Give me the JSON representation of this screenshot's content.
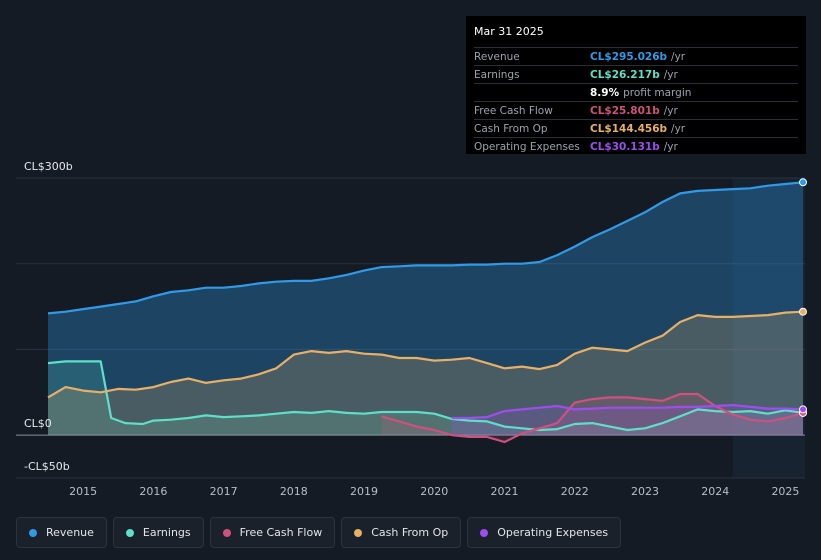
{
  "tooltip": {
    "date": "Mar 31 2025",
    "rows": [
      {
        "label": "Revenue",
        "value": "CL$295.026b",
        "suffix": "/yr",
        "color": "#2f9be8"
      },
      {
        "label": "Earnings",
        "value": "CL$26.217b",
        "suffix": "/yr",
        "color": "#5ee0c8"
      },
      {
        "label": "",
        "value": "8.9%",
        "suffix": "profit margin",
        "color": "#ffffff"
      },
      {
        "label": "Free Cash Flow",
        "value": "CL$25.801b",
        "suffix": "/yr",
        "color": "#d0507e"
      },
      {
        "label": "Cash From Op",
        "value": "CL$144.456b",
        "suffix": "/yr",
        "color": "#e8b066"
      },
      {
        "label": "Operating Expenses",
        "value": "CL$30.131b",
        "suffix": "/yr",
        "color": "#9e4ef0"
      }
    ]
  },
  "axis": {
    "top_label": "CL$300b",
    "zero_label": "CL$0",
    "bottom_label": "-CL$50b"
  },
  "legend": [
    {
      "label": "Revenue",
      "color": "#2f9be8"
    },
    {
      "label": "Earnings",
      "color": "#5ee0c8"
    },
    {
      "label": "Free Cash Flow",
      "color": "#d0507e"
    },
    {
      "label": "Cash From Op",
      "color": "#e8b066"
    },
    {
      "label": "Operating Expenses",
      "color": "#9e4ef0"
    }
  ],
  "chart_data": {
    "type": "area",
    "title": "",
    "xlabel": "",
    "ylabel": "",
    "ylim": [
      -50,
      300
    ],
    "xlim": [
      2014.5,
      2025.25
    ],
    "x_ticks": [
      "2015",
      "2016",
      "2017",
      "2018",
      "2019",
      "2020",
      "2021",
      "2022",
      "2023",
      "2024",
      "2025"
    ],
    "series": [
      {
        "name": "Revenue",
        "color": "#2f9be8",
        "x": [
          2014.5,
          2014.75,
          2015.0,
          2015.25,
          2015.5,
          2015.75,
          2016.0,
          2016.25,
          2016.5,
          2016.75,
          2017.0,
          2017.25,
          2017.5,
          2017.75,
          2018.0,
          2018.25,
          2018.5,
          2018.75,
          2019.0,
          2019.25,
          2019.5,
          2019.75,
          2020.0,
          2020.25,
          2020.5,
          2020.75,
          2021.0,
          2021.25,
          2021.5,
          2021.75,
          2022.0,
          2022.25,
          2022.5,
          2022.75,
          2023.0,
          2023.25,
          2023.5,
          2023.75,
          2024.0,
          2024.25,
          2024.5,
          2024.75,
          2025.0,
          2025.25
        ],
        "values": [
          142,
          144,
          147,
          150,
          153,
          156,
          162,
          167,
          169,
          172,
          172,
          174,
          177,
          179,
          180,
          180,
          183,
          187,
          192,
          196,
          197,
          198,
          198,
          198,
          199,
          199,
          200,
          200,
          202,
          210,
          220,
          231,
          240,
          250,
          260,
          272,
          282,
          285,
          286,
          287,
          288,
          291,
          293,
          295
        ]
      },
      {
        "name": "Earnings",
        "color": "#5ee0c8",
        "x": [
          2014.5,
          2014.75,
          2015.0,
          2015.1,
          2015.25,
          2015.4,
          2015.6,
          2015.85,
          2016.0,
          2016.25,
          2016.5,
          2016.75,
          2017.0,
          2017.25,
          2017.5,
          2017.75,
          2018.0,
          2018.25,
          2018.5,
          2018.75,
          2019.0,
          2019.25,
          2019.5,
          2019.75,
          2020.0,
          2020.25,
          2020.5,
          2020.75,
          2021.0,
          2021.25,
          2021.5,
          2021.75,
          2022.0,
          2022.25,
          2022.5,
          2022.75,
          2023.0,
          2023.25,
          2023.5,
          2023.75,
          2024.0,
          2024.25,
          2024.5,
          2024.75,
          2025.0,
          2025.25
        ],
        "values": [
          84,
          86,
          86,
          86,
          86,
          20,
          14,
          13,
          17,
          18,
          20,
          23,
          21,
          22,
          23,
          25,
          27,
          26,
          28,
          26,
          25,
          27,
          27,
          27,
          25,
          19,
          17,
          16,
          10,
          8,
          6,
          7,
          13,
          14,
          10,
          6,
          8,
          14,
          22,
          30,
          28,
          27,
          28,
          25,
          29,
          26
        ]
      },
      {
        "name": "Free Cash Flow",
        "color": "#d0507e",
        "x": [
          2019.25,
          2019.5,
          2019.75,
          2020.0,
          2020.25,
          2020.5,
          2020.75,
          2021.0,
          2021.25,
          2021.5,
          2021.75,
          2022.0,
          2022.25,
          2022.5,
          2022.75,
          2023.0,
          2023.25,
          2023.5,
          2023.75,
          2024.0,
          2024.25,
          2024.5,
          2024.75,
          2025.0,
          2025.25
        ],
        "values": [
          22,
          16,
          10,
          6,
          0,
          -2,
          -2,
          -8,
          2,
          8,
          14,
          38,
          42,
          44,
          44,
          42,
          40,
          48,
          48,
          34,
          24,
          18,
          16,
          20,
          26
        ]
      },
      {
        "name": "Cash From Op",
        "color": "#e8b066",
        "x": [
          2014.5,
          2014.75,
          2015.0,
          2015.25,
          2015.5,
          2015.75,
          2016.0,
          2016.25,
          2016.5,
          2016.75,
          2017.0,
          2017.25,
          2017.5,
          2017.75,
          2018.0,
          2018.25,
          2018.5,
          2018.75,
          2019.0,
          2019.25,
          2019.5,
          2019.75,
          2020.0,
          2020.25,
          2020.5,
          2020.75,
          2021.0,
          2021.25,
          2021.5,
          2021.75,
          2022.0,
          2022.25,
          2022.5,
          2022.75,
          2023.0,
          2023.25,
          2023.5,
          2023.75,
          2024.0,
          2024.25,
          2024.5,
          2024.75,
          2025.0,
          2025.25
        ],
        "values": [
          44,
          56,
          52,
          50,
          54,
          53,
          56,
          62,
          66,
          61,
          64,
          66,
          71,
          78,
          94,
          98,
          96,
          98,
          95,
          94,
          90,
          90,
          87,
          88,
          90,
          84,
          78,
          80,
          77,
          82,
          95,
          102,
          100,
          98,
          108,
          116,
          132,
          140,
          138,
          138,
          139,
          140,
          143,
          144
        ]
      },
      {
        "name": "Operating Expenses",
        "color": "#9e4ef0",
        "x": [
          2020.25,
          2020.5,
          2020.75,
          2021.0,
          2021.25,
          2021.5,
          2021.75,
          2022.0,
          2022.25,
          2022.5,
          2022.75,
          2023.0,
          2023.25,
          2023.5,
          2023.75,
          2024.0,
          2024.25,
          2024.5,
          2024.75,
          2025.0,
          2025.25
        ],
        "values": [
          20,
          20,
          21,
          28,
          30,
          32,
          34,
          30,
          31,
          32,
          32,
          32,
          32,
          33,
          33,
          34,
          35,
          33,
          31,
          31,
          30
        ]
      }
    ]
  }
}
